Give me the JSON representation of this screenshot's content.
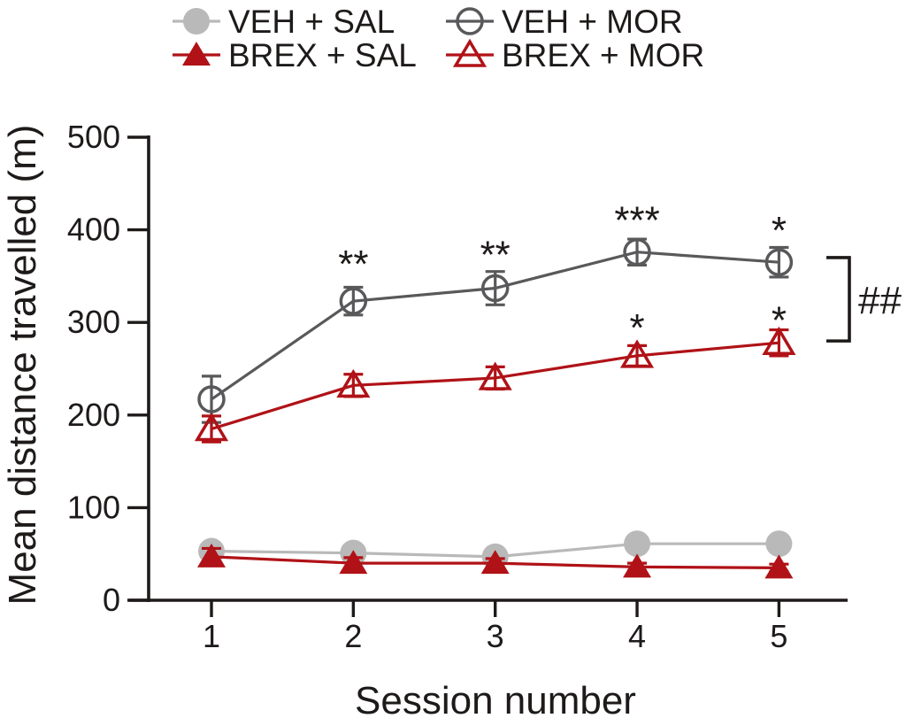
{
  "figure": {
    "background": "#ffffff",
    "text_color": "#1d1a19",
    "axis_color": "#1d1a19"
  },
  "chart_data": {
    "type": "line",
    "title": "",
    "xlabel": "Session number",
    "ylabel": "Mean distance travelled (m)",
    "x": [
      1,
      2,
      3,
      4,
      5
    ],
    "x_tick_labels": [
      "1",
      "2",
      "3",
      "4",
      "5"
    ],
    "y_ticks": [
      0,
      100,
      200,
      300,
      400,
      500
    ],
    "ylim": [
      0,
      500
    ],
    "grid": false,
    "legend_position": "top",
    "error_bar_type": "sem",
    "series": [
      {
        "name": "VEH + SAL",
        "marker": "circle-filled",
        "color": "#b9b9b9",
        "values": [
          53,
          51,
          47,
          61,
          61
        ],
        "sem": [
          7,
          5,
          5,
          5,
          5
        ]
      },
      {
        "name": "VEH + MOR",
        "marker": "circle-open",
        "color": "#59595b",
        "values": [
          217,
          323,
          337,
          376,
          365
        ],
        "sem": [
          25,
          15,
          18,
          14,
          16
        ]
      },
      {
        "name": "BREX + SAL",
        "marker": "triangle-filled",
        "color": "#b01217",
        "values": [
          47,
          40,
          40,
          36,
          35
        ],
        "sem": [
          9,
          6,
          5,
          4,
          4
        ]
      },
      {
        "name": "BREX + MOR",
        "marker": "triangle-open",
        "color": "#b01217",
        "values": [
          185,
          232,
          240,
          264,
          278
        ],
        "sem": [
          14,
          12,
          12,
          11,
          14
        ]
      }
    ],
    "annotations": {
      "significance_marks": [
        {
          "session": 2,
          "value": 373,
          "text": "**"
        },
        {
          "session": 3,
          "value": 383,
          "text": "**"
        },
        {
          "session": 4,
          "value": 420,
          "text": "***"
        },
        {
          "session": 4,
          "value": 304,
          "text": "*"
        },
        {
          "session": 5,
          "value": 409,
          "text": "*"
        },
        {
          "session": 5,
          "value": 312,
          "text": "*"
        }
      ],
      "bracket": {
        "label": "##",
        "value_top": 370,
        "value_bottom": 280
      }
    }
  }
}
